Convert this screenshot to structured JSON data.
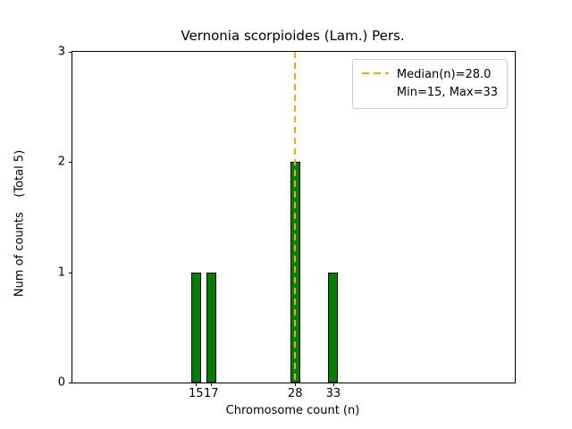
{
  "chart_data": {
    "type": "bar",
    "title": "Vernonia scorpioides (Lam.) Pers.",
    "xlabel": "Chromosome count (n)",
    "ylabel": "Num of counts    (Total 5)",
    "x": [
      15,
      17,
      28,
      33
    ],
    "values": [
      1,
      1,
      2,
      1
    ],
    "total_counts": 5,
    "median": 28.0,
    "min": 15,
    "max": 33,
    "bar_color": "#008000",
    "bar_edge_color": "#000000",
    "median_line_color": "#ffa500",
    "xlim": [
      -1.2,
      56.8
    ],
    "ylim": [
      0,
      3
    ],
    "xticks": [
      15,
      17,
      28,
      33
    ],
    "yticks": [
      0,
      1,
      2,
      3
    ],
    "bar_width_units": 1.0,
    "grid": false,
    "legend": {
      "position": "upper right",
      "entries": [
        "Median(n)=28.0",
        "Min=15, Max=33"
      ]
    }
  }
}
